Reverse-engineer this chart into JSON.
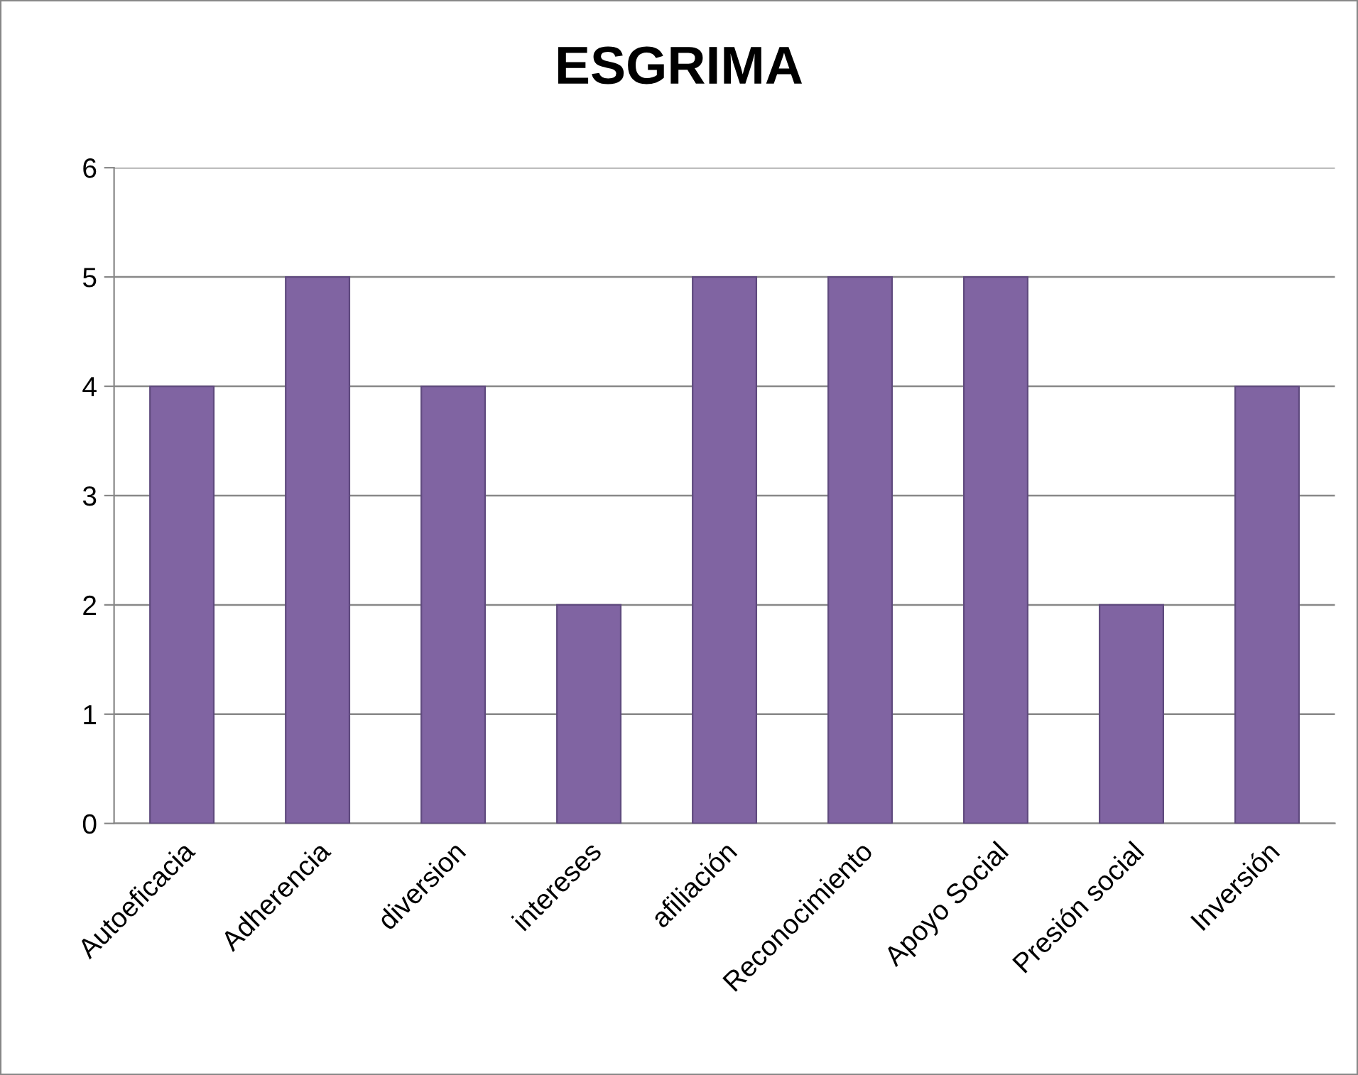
{
  "chart_data": {
    "type": "bar",
    "title": "ESGRIMA",
    "categories": [
      "Autoeficacia",
      "Adherencia",
      "diversion",
      "intereses",
      "afiliación",
      "Reconocimiento",
      "Apoyo Social",
      "Presión social",
      "Inversión"
    ],
    "values": [
      4,
      5,
      4,
      2,
      5,
      5,
      5,
      2,
      4
    ],
    "color": "#8064a2",
    "ylim": [
      0,
      6
    ],
    "yticks": [
      0,
      1,
      2,
      3,
      4,
      5,
      6
    ],
    "grid": "y",
    "legend": false
  }
}
